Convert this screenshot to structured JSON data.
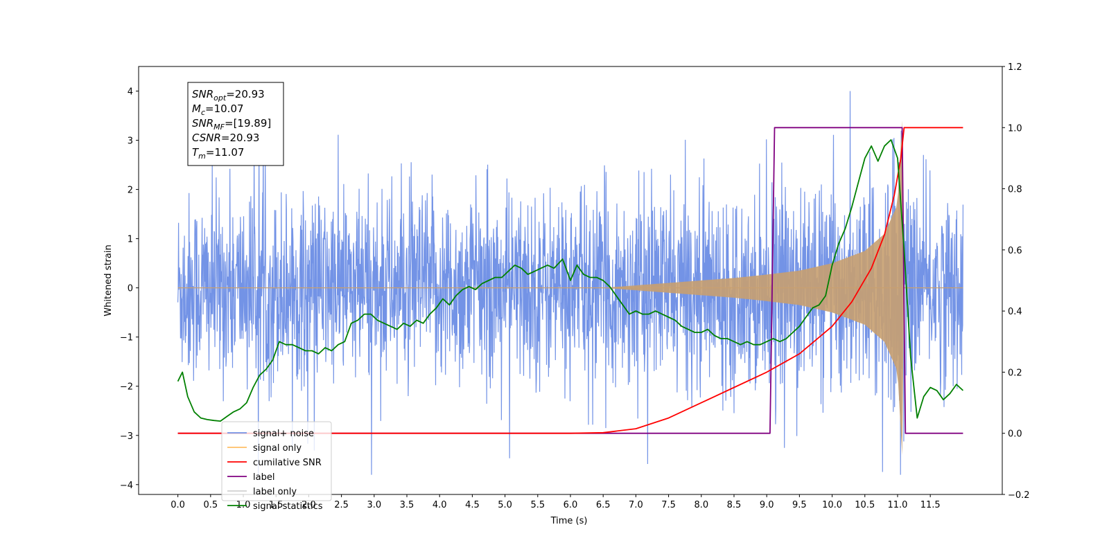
{
  "chart_data": {
    "type": "line",
    "xlabel": "Time (s)",
    "ylabel": "Whitened strain",
    "xlim": [
      -0.6,
      12.6
    ],
    "ylim": [
      -4.2,
      4.5
    ],
    "y2lim": [
      -0.2,
      1.2
    ],
    "x_ticks": [
      "0.0",
      "0.5",
      "1.0",
      "1.5",
      "2.0",
      "2.5",
      "3.0",
      "3.5",
      "4.0",
      "4.5",
      "5.0",
      "5.5",
      "6.0",
      "6.5",
      "7.0",
      "7.5",
      "8.0",
      "8.5",
      "9.0",
      "9.5",
      "10.0",
      "10.5",
      "11.0",
      "11.5"
    ],
    "x_tick_values": [
      0,
      0.5,
      1,
      1.5,
      2,
      2.5,
      3,
      3.5,
      4,
      4.5,
      5,
      5.5,
      6,
      6.5,
      7,
      7.5,
      8,
      8.5,
      9,
      9.5,
      10,
      10.5,
      11,
      11.5
    ],
    "y_ticks": [
      "−4",
      "−3",
      "−2",
      "−1",
      "0",
      "1",
      "2",
      "3",
      "4"
    ],
    "y_tick_values": [
      -4,
      -3,
      -2,
      -1,
      0,
      1,
      2,
      3,
      4
    ],
    "y2_ticks": [
      "−0.2",
      "0.0",
      "0.2",
      "0.4",
      "0.6",
      "0.8",
      "1.0",
      "1.2"
    ],
    "y2_tick_values": [
      -0.2,
      0,
      0.2,
      0.4,
      0.6,
      0.8,
      1.0,
      1.2
    ],
    "annotation": {
      "lines": [
        {
          "main": "SNR",
          "sub": "opt",
          "rest": "=20.93"
        },
        {
          "main": "M",
          "sub": "c",
          "rest": "=10.07"
        },
        {
          "main": "SNR",
          "sub": "MF",
          "rest": "=[19.89]"
        },
        {
          "main": "CSNR",
          "sub": "",
          "rest": "=20.93"
        },
        {
          "main": "T",
          "sub": "m",
          "rest": "=11.07"
        }
      ]
    },
    "legend": {
      "placement": "lower-left",
      "entries": [
        {
          "label": "signal+ noise",
          "color": "#7393e6"
        },
        {
          "label": "signal only",
          "color": "#ffbf66"
        },
        {
          "label": "cumilative SNR",
          "color": "#ff0000"
        },
        {
          "label": "label",
          "color": "#800080"
        },
        {
          "label": "label only",
          "color": "#d0d0d0"
        },
        {
          "label": "signal statistics",
          "color": "#008000"
        }
      ]
    },
    "series": [
      {
        "name": "signal+ noise",
        "axis": "left",
        "color": "#7393e6",
        "description_stats": {
          "x_start": 0,
          "x_end": 12,
          "typical_amplitude": 2.0,
          "max": 4.0,
          "min": -3.8
        }
      },
      {
        "name": "signal only",
        "axis": "left",
        "color": "#c8a070",
        "x_start": 0,
        "x_end": 12,
        "envelope": {
          "x": [
            0,
            6.5,
            7.0,
            7.5,
            8.0,
            8.5,
            9.0,
            9.5,
            10.0,
            10.5,
            10.8,
            11.0,
            11.07,
            11.1,
            12.0
          ],
          "amp": [
            0,
            0,
            0.05,
            0.1,
            0.15,
            0.2,
            0.27,
            0.35,
            0.5,
            0.75,
            1.1,
            1.7,
            3.4,
            0,
            0
          ]
        }
      },
      {
        "name": "cumilative SNR",
        "axis": "right",
        "color": "#ff0000",
        "x": [
          0,
          6.0,
          6.5,
          7.0,
          7.5,
          8.0,
          8.5,
          9.0,
          9.5,
          10.0,
          10.3,
          10.6,
          10.8,
          10.95,
          11.05,
          11.1,
          12.0
        ],
        "y": [
          0,
          0,
          0.002,
          0.015,
          0.05,
          0.1,
          0.15,
          0.2,
          0.26,
          0.35,
          0.43,
          0.54,
          0.65,
          0.78,
          0.9,
          1.0,
          1.0
        ]
      },
      {
        "name": "label",
        "axis": "right",
        "color": "#800080",
        "x": [
          0,
          9.05,
          9.12,
          11.07,
          11.12,
          12.0
        ],
        "y": [
          0,
          0,
          1.0,
          1.0,
          0,
          0
        ]
      },
      {
        "name": "signal statistics",
        "axis": "right",
        "color": "#008000",
        "x": [
          0,
          0.07,
          0.15,
          0.25,
          0.35,
          0.45,
          0.55,
          0.65,
          0.75,
          0.85,
          0.95,
          1.05,
          1.15,
          1.25,
          1.35,
          1.45,
          1.55,
          1.65,
          1.75,
          1.85,
          1.95,
          2.05,
          2.15,
          2.25,
          2.35,
          2.45,
          2.55,
          2.65,
          2.75,
          2.85,
          2.95,
          3.05,
          3.15,
          3.25,
          3.35,
          3.45,
          3.55,
          3.65,
          3.75,
          3.85,
          3.95,
          4.05,
          4.15,
          4.25,
          4.35,
          4.45,
          4.55,
          4.65,
          4.75,
          4.85,
          4.95,
          5.05,
          5.15,
          5.25,
          5.35,
          5.45,
          5.55,
          5.65,
          5.75,
          5.88,
          6.0,
          6.1,
          6.2,
          6.3,
          6.4,
          6.5,
          6.6,
          6.7,
          6.8,
          6.9,
          7.0,
          7.1,
          7.2,
          7.3,
          7.4,
          7.5,
          7.6,
          7.7,
          7.8,
          7.9,
          8.0,
          8.1,
          8.2,
          8.3,
          8.4,
          8.5,
          8.6,
          8.7,
          8.8,
          8.9,
          9.0,
          9.1,
          9.2,
          9.3,
          9.4,
          9.5,
          9.6,
          9.7,
          9.8,
          9.9,
          10.0,
          10.1,
          10.2,
          10.3,
          10.4,
          10.5,
          10.6,
          10.7,
          10.8,
          10.9,
          11.0,
          11.1,
          11.2,
          11.3,
          11.4,
          11.5,
          11.6,
          11.7,
          11.8,
          11.9,
          12.0
        ],
        "y": [
          0.17,
          0.2,
          0.12,
          0.07,
          0.05,
          0.045,
          0.042,
          0.04,
          0.055,
          0.07,
          0.08,
          0.1,
          0.15,
          0.19,
          0.21,
          0.24,
          0.3,
          0.29,
          0.29,
          0.28,
          0.27,
          0.27,
          0.26,
          0.28,
          0.27,
          0.29,
          0.3,
          0.36,
          0.37,
          0.39,
          0.39,
          0.37,
          0.36,
          0.35,
          0.34,
          0.36,
          0.35,
          0.37,
          0.36,
          0.39,
          0.41,
          0.44,
          0.42,
          0.45,
          0.47,
          0.48,
          0.47,
          0.49,
          0.5,
          0.51,
          0.51,
          0.53,
          0.55,
          0.54,
          0.52,
          0.53,
          0.54,
          0.55,
          0.54,
          0.57,
          0.5,
          0.55,
          0.52,
          0.51,
          0.51,
          0.5,
          0.48,
          0.45,
          0.42,
          0.39,
          0.4,
          0.39,
          0.39,
          0.4,
          0.39,
          0.38,
          0.37,
          0.35,
          0.34,
          0.33,
          0.33,
          0.34,
          0.32,
          0.31,
          0.31,
          0.3,
          0.29,
          0.3,
          0.29,
          0.29,
          0.3,
          0.31,
          0.3,
          0.31,
          0.33,
          0.35,
          0.38,
          0.41,
          0.42,
          0.45,
          0.55,
          0.62,
          0.67,
          0.74,
          0.82,
          0.9,
          0.94,
          0.89,
          0.94,
          0.96,
          0.9,
          0.6,
          0.25,
          0.05,
          0.12,
          0.15,
          0.14,
          0.11,
          0.13,
          0.16,
          0.14
        ]
      }
    ]
  }
}
